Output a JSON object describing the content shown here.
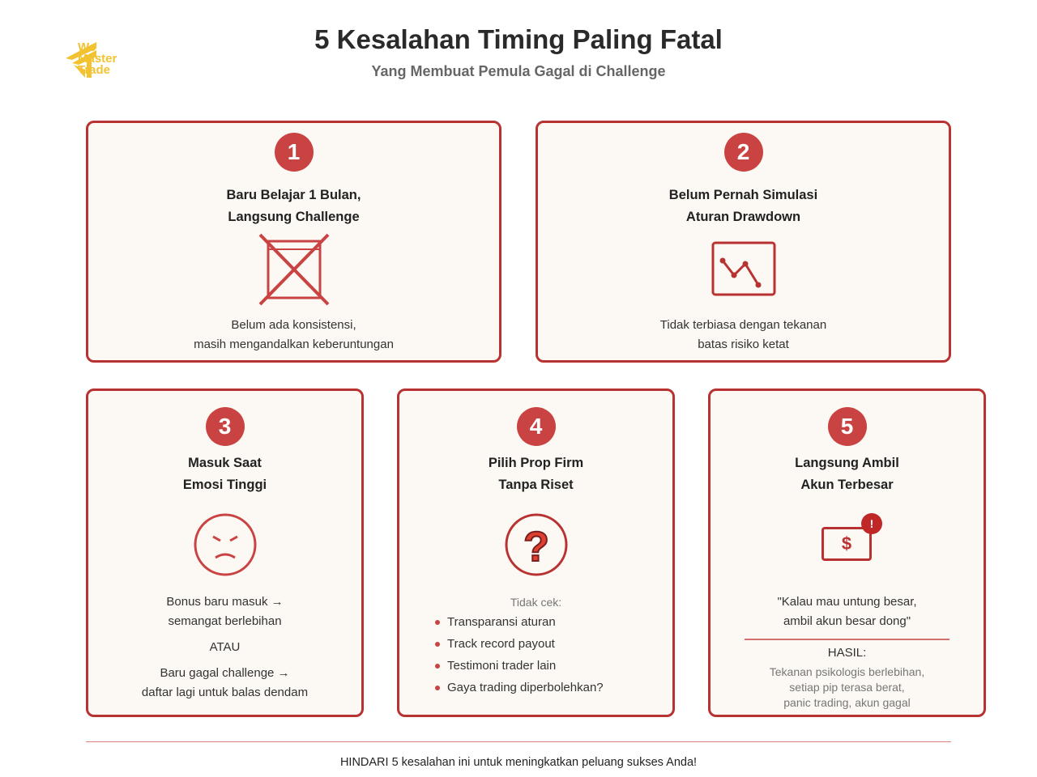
{
  "logo": {
    "lines": [
      "We",
      "Master",
      "Trade"
    ]
  },
  "header": {
    "title": "5 Kesalahan Timing Paling Fatal",
    "subtitle": "Yang Membuat Pemula Gagal di Challenge"
  },
  "colors": {
    "accent": "#c94343",
    "border": "#b83232",
    "card_bg": "#fcf8f3",
    "logo": "#f2c230"
  },
  "cards": [
    {
      "number": "1",
      "title": [
        "Baru Belajar 1 Bulan,",
        "Langsung Challenge"
      ],
      "icon": "crossed-box-icon",
      "text": [
        "Belum ada konsistensi,",
        "masih mengandalkan keberuntungan"
      ]
    },
    {
      "number": "2",
      "title": [
        "Belum Pernah Simulasi",
        "Aturan Drawdown"
      ],
      "icon": "drawdown-chart-icon",
      "text": [
        "Tidak terbiasa dengan tekanan",
        "batas risiko ketat"
      ]
    },
    {
      "number": "3",
      "title": [
        "Masuk Saat",
        "Emosi Tinggi"
      ],
      "icon": "angry-face-icon",
      "text": [
        "Bonus baru masuk →",
        "semangat berlebihan",
        "ATAU",
        "Baru gagal challenge →",
        "daftar lagi untuk balas dendam"
      ]
    },
    {
      "number": "4",
      "title": [
        "Pilih Prop Firm",
        "Tanpa Riset"
      ],
      "icon": "question-icon",
      "label": "Tidak cek:",
      "bullets": [
        "Transparansi aturan",
        "Track record payout",
        "Testimoni trader lain",
        "Gaya trading diperbolehkan?"
      ]
    },
    {
      "number": "5",
      "title": [
        "Langsung Ambil",
        "Akun Terbesar"
      ],
      "icon": "money-alert-icon",
      "icon_symbol": "$",
      "alert_symbol": "!",
      "quote": [
        "\"Kalau mau untung besar,",
        "ambil akun besar dong\""
      ],
      "result_label": "HASIL:",
      "result": [
        "Tekanan psikologis berlebihan,",
        "setiap pip terasa berat,",
        "panic trading, akun gagal"
      ]
    }
  ],
  "footer": {
    "text": "HINDARI 5 kesalahan ini untuk meningkatkan peluang sukses Anda!"
  }
}
